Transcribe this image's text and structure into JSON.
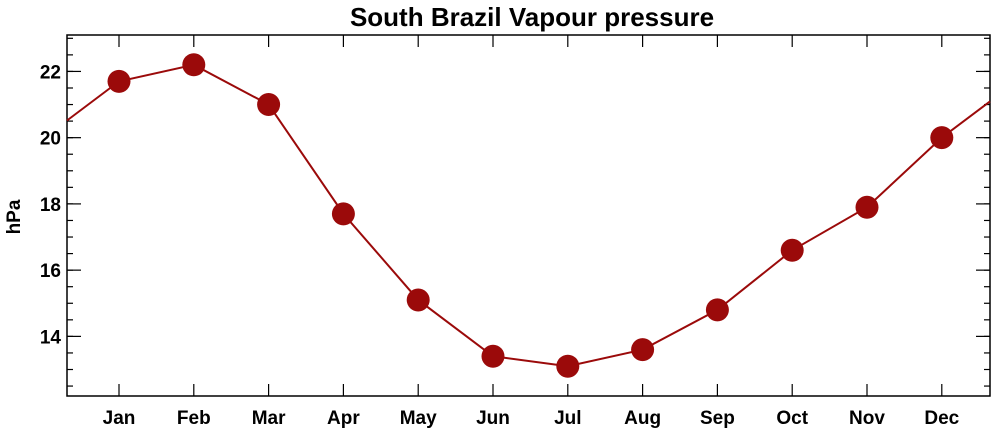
{
  "chart_data": {
    "type": "line",
    "title": "South Brazil Vapour pressure",
    "xlabel": "",
    "ylabel": "hPa",
    "categories": [
      "Jan",
      "Feb",
      "Mar",
      "Apr",
      "May",
      "Jun",
      "Jul",
      "Aug",
      "Sep",
      "Oct",
      "Nov",
      "Dec"
    ],
    "series": [
      {
        "values": [
          21.7,
          22.2,
          21.0,
          17.7,
          15.1,
          13.4,
          13.1,
          13.6,
          14.8,
          16.6,
          17.9,
          20.0
        ],
        "color": "#9b0a0a"
      }
    ],
    "ylim": [
      12.2,
      23.1
    ],
    "yticks": [
      14,
      16,
      18,
      20,
      22
    ],
    "y_minor_step": 0.5,
    "grid": false,
    "legend": "none",
    "line_extends_to_frame_edges": true
  }
}
